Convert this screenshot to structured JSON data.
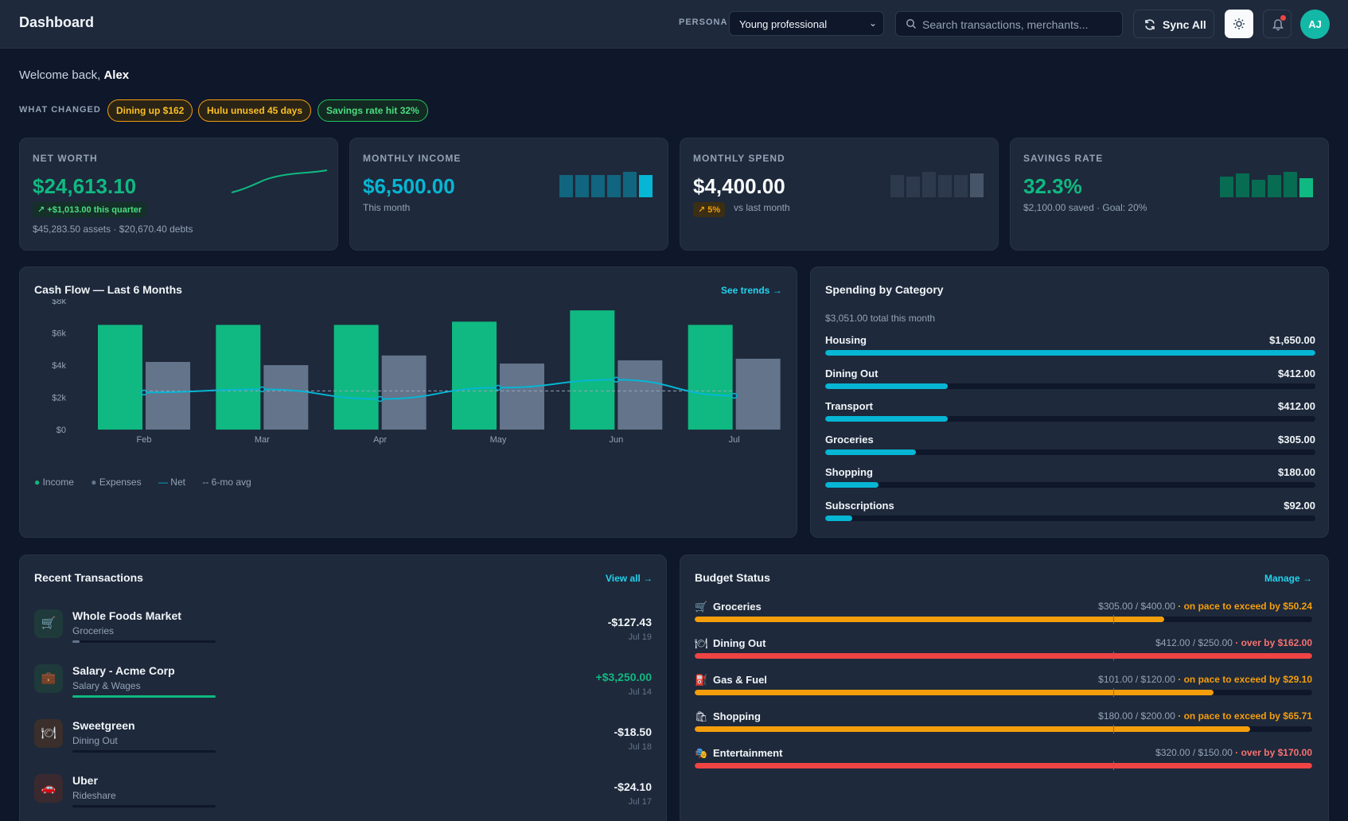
{
  "header": {
    "title": "Dashboard",
    "persona_label": "PERSONA",
    "persona_value": "Young professional",
    "search_placeholder": "Search transactions, merchants...",
    "sync_label": "Sync All",
    "avatar_initials": "AJ"
  },
  "welcome": {
    "prefix": "Welcome back,",
    "name": "Alex"
  },
  "what_changed": {
    "label": "WHAT CHANGED",
    "chips": [
      {
        "label": "Dining up $162",
        "tone": "warn"
      },
      {
        "label": "Hulu unused 45 days",
        "tone": "warn"
      },
      {
        "label": "Savings rate hit 32%",
        "tone": "good"
      }
    ]
  },
  "kpis": {
    "net_worth": {
      "label": "NET WORTH",
      "value": "$24,613.10",
      "badge": "+$1,013.00 this quarter",
      "foot": "$45,283.50 assets · $20,670.40 debts"
    },
    "income": {
      "label": "MONTHLY INCOME",
      "value": "$6,500.00",
      "sub": "This month"
    },
    "spend": {
      "label": "MONTHLY SPEND",
      "value": "$4,400.00",
      "badge": "5%",
      "sub": "vs last month"
    },
    "savings": {
      "label": "SAVINGS RATE",
      "value": "32.3%",
      "sub": "$2,100.00 saved · Goal: 20%"
    }
  },
  "colors": {
    "income": "#10b981",
    "expense": "#64748b",
    "net": "#06b6d4",
    "warn": "#f59e0b",
    "danger": "#ef4444",
    "teal_value": "#10b981",
    "cyan_value": "#06b6d4"
  },
  "cashflow": {
    "title": "Cash Flow — Last 6 Months",
    "link": "See trends →",
    "legend": {
      "income": "Income",
      "expenses": "Expenses",
      "net": "Net",
      "avg": "6-mo avg"
    }
  },
  "chart_data": {
    "type": "bar",
    "categories": [
      "Feb",
      "Mar",
      "Apr",
      "May",
      "Jun",
      "Jul"
    ],
    "series": [
      {
        "name": "Income",
        "values": [
          6500,
          6500,
          6500,
          6700,
          7400,
          6500
        ]
      },
      {
        "name": "Expenses",
        "values": [
          4200,
          4000,
          4600,
          4100,
          4300,
          4400
        ]
      },
      {
        "name": "Net",
        "values": [
          2300,
          2500,
          1900,
          2600,
          3100,
          2100
        ]
      },
      {
        "name": "6-mo avg",
        "values": [
          2400,
          2400,
          2400,
          2400,
          2400,
          2400
        ]
      }
    ],
    "yticks": [
      "$0",
      "$2k",
      "$4k",
      "$6k",
      "$8k"
    ],
    "ylim": [
      0,
      8000
    ]
  },
  "spending": {
    "title": "Spending by Category",
    "subtitle": "$3,051.00 total this month",
    "items": [
      {
        "name": "Housing",
        "amount": "$1,650.00",
        "value": 1650
      },
      {
        "name": "Dining Out",
        "amount": "$412.00",
        "value": 412
      },
      {
        "name": "Transport",
        "amount": "$412.00",
        "value": 412
      },
      {
        "name": "Groceries",
        "amount": "$305.00",
        "value": 305
      },
      {
        "name": "Shopping",
        "amount": "$180.00",
        "value": 180
      },
      {
        "name": "Subscriptions",
        "amount": "$92.00",
        "value": 92
      }
    ]
  },
  "transactions": {
    "title": "Recent Transactions",
    "link": "View all →",
    "items": [
      {
        "name": "Whole Foods Market",
        "category": "Groceries",
        "amount": "-$127.43",
        "date": "Jul 19",
        "icon": "cart-icon",
        "glyph": "🛒",
        "progress": 0.05
      },
      {
        "name": "Salary - Acme Corp",
        "category": "Salary & Wages",
        "amount": "+$3,250.00",
        "date": "Jul 14",
        "icon": "briefcase-icon",
        "glyph": "💼",
        "progress": 1.0
      },
      {
        "name": "Sweetgreen",
        "category": "Dining Out",
        "amount": "-$18.50",
        "date": "Jul 18",
        "icon": "plate-icon",
        "glyph": "🍽",
        "progress": 0.0
      },
      {
        "name": "Uber",
        "category": "Rideshare",
        "amount": "-$24.10",
        "date": "Jul 17",
        "icon": "car-icon",
        "glyph": "🚗",
        "progress": 0.0
      }
    ]
  },
  "budget": {
    "title": "Budget Status",
    "link": "Manage →",
    "items": [
      {
        "name": "Groceries",
        "icon": "cart-icon",
        "glyph": "🛒",
        "amounts": "$305.00 / $400.00",
        "note": "· on pace to exceed by $50.24",
        "tone": "warn",
        "progress": 0.76
      },
      {
        "name": "Dining Out",
        "icon": "plate-icon",
        "glyph": "🍽",
        "amounts": "$412.00 / $250.00",
        "note": "· over by $162.00",
        "tone": "danger",
        "progress": 1.0
      },
      {
        "name": "Gas & Fuel",
        "icon": "fuel-icon",
        "glyph": "⛽",
        "amounts": "$101.00 / $120.00",
        "note": "· on pace to exceed by $29.10",
        "tone": "warn",
        "progress": 0.84
      },
      {
        "name": "Shopping",
        "icon": "bags-icon",
        "glyph": "🛍",
        "amounts": "$180.00 / $200.00",
        "note": "· on pace to exceed by $65.71",
        "tone": "warn",
        "progress": 0.9
      },
      {
        "name": "Entertainment",
        "icon": "masks-icon",
        "glyph": "🎭",
        "amounts": "$320.00 / $150.00",
        "note": "· over by $170.00",
        "tone": "danger",
        "progress": 1.0
      }
    ]
  }
}
